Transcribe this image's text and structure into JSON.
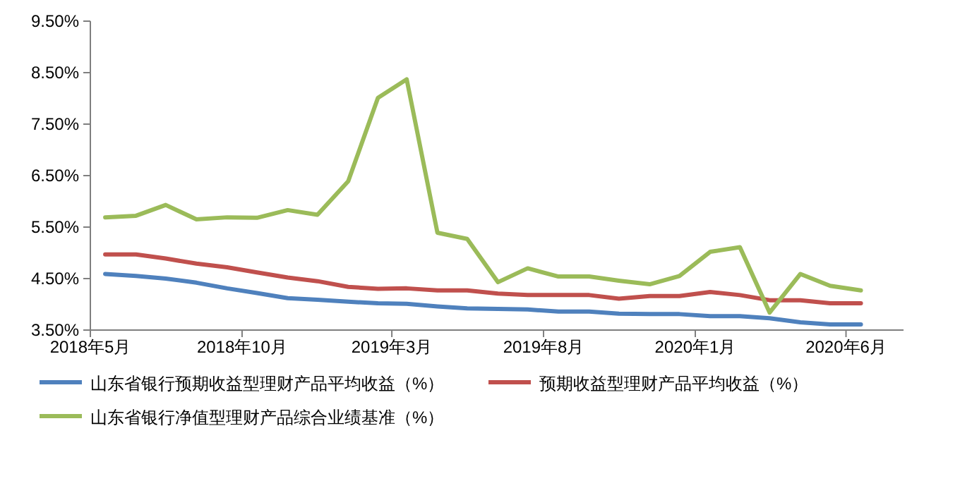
{
  "chart_data": {
    "type": "line",
    "x": [
      "2018-05-16",
      "2018-06-16",
      "2018-07-16",
      "2018-08-16",
      "2018-09-16",
      "2018-10-16",
      "2018-11-16",
      "2018-12-16",
      "2019-01-16",
      "2019-02-15",
      "2019-03-16",
      "2019-04-16",
      "2019-05-16",
      "2019-06-16",
      "2019-07-16",
      "2019-08-16",
      "2019-09-16",
      "2019-10-16",
      "2019-11-16",
      "2019-12-16",
      "2020-01-16",
      "2020-02-15",
      "2020-03-16",
      "2020-04-16",
      "2020-05-16",
      "2020-06-16"
    ],
    "xlim": [
      "2018-05-01",
      "2020-07-29"
    ],
    "xticks": [
      {
        "value": "2018-05-01",
        "label": "2018年5月"
      },
      {
        "value": "2018-10-01",
        "label": "2018年10月"
      },
      {
        "value": "2019-03-01",
        "label": "2019年3月"
      },
      {
        "value": "2019-08-01",
        "label": "2019年8月"
      },
      {
        "value": "2020-01-01",
        "label": "2020年1月"
      },
      {
        "value": "2020-06-01",
        "label": "2020年6月"
      }
    ],
    "ylim": [
      3.5,
      9.5
    ],
    "yticks": [
      {
        "value": 3.5,
        "label": "3.50%"
      },
      {
        "value": 4.5,
        "label": "4.50%"
      },
      {
        "value": 5.5,
        "label": "5.50%"
      },
      {
        "value": 6.5,
        "label": "6.50%"
      },
      {
        "value": 7.5,
        "label": "7.50%"
      },
      {
        "value": 8.5,
        "label": "8.50%"
      },
      {
        "value": 9.5,
        "label": "9.50%"
      }
    ],
    "series": [
      {
        "name": "山东省银行预期收益型理财产品平均收益（%）",
        "color": "#4f81bd",
        "values": [
          4.59,
          4.55,
          4.5,
          4.42,
          4.31,
          4.22,
          4.12,
          4.09,
          4.05,
          4.02,
          4.01,
          3.96,
          3.92,
          3.91,
          3.9,
          3.86,
          3.86,
          3.82,
          3.81,
          3.81,
          3.77,
          3.77,
          3.73,
          3.65,
          3.61,
          3.61
        ]
      },
      {
        "name": "预期收益型理财产品平均收益（%）",
        "color": "#c0504d",
        "values": [
          4.97,
          4.97,
          4.89,
          4.79,
          4.72,
          4.62,
          4.52,
          4.45,
          4.34,
          4.3,
          4.31,
          4.27,
          4.27,
          4.21,
          4.18,
          4.18,
          4.18,
          4.11,
          4.16,
          4.16,
          4.24,
          4.18,
          4.08,
          4.08,
          4.02,
          4.02
        ]
      },
      {
        "name": "山东省银行净值型理财产品综合业绩基准（%）",
        "color": "#9bbb59",
        "values": [
          5.69,
          5.72,
          5.93,
          5.65,
          5.69,
          5.68,
          5.83,
          5.74,
          6.39,
          8.01,
          8.37,
          5.39,
          5.27,
          4.43,
          4.7,
          4.54,
          4.54,
          4.46,
          4.39,
          4.55,
          5.02,
          5.11,
          3.84,
          4.59,
          4.36,
          4.27
        ]
      }
    ],
    "legend": "bottom"
  }
}
